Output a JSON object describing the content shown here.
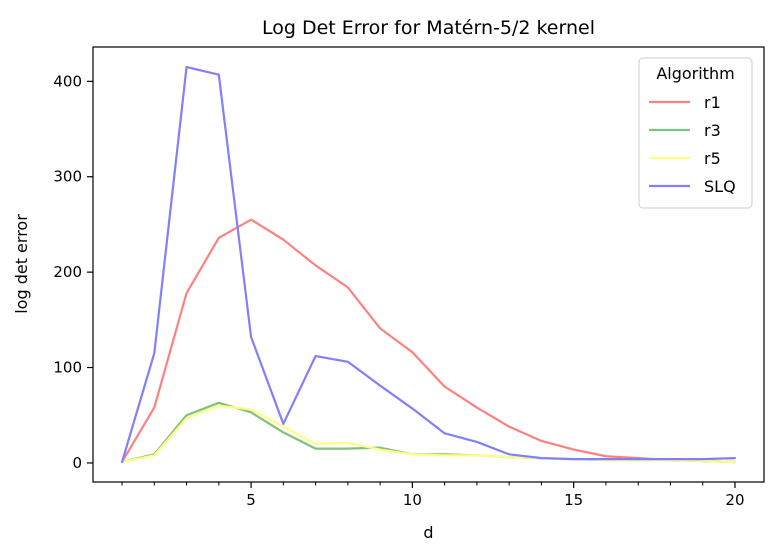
{
  "chart_data": {
    "type": "line",
    "title": "Log Det Error for Matérn-5/2 kernel",
    "xlabel": "d",
    "ylabel": "log det error",
    "x": [
      1,
      2,
      3,
      4,
      5,
      6,
      7,
      8,
      9,
      10,
      11,
      12,
      13,
      14,
      15,
      16,
      17,
      18,
      19,
      20
    ],
    "xlim": [
      0.1,
      20.9
    ],
    "ylim": [
      -20,
      436
    ],
    "xticks_major": [
      5,
      10,
      15,
      20
    ],
    "xticks_minor": [
      1,
      2,
      3,
      4,
      6,
      7,
      8,
      9,
      11,
      12,
      13,
      14,
      16,
      17,
      18,
      19
    ],
    "yticks": [
      0,
      100,
      200,
      300,
      400
    ],
    "grid": false,
    "legend": {
      "title": "Algorithm",
      "placement": "top-right"
    },
    "series": [
      {
        "name": "r1",
        "color": "#ff8080",
        "values": [
          1,
          58,
          178,
          236,
          255,
          234,
          207,
          184,
          141,
          116,
          80,
          58,
          38,
          23,
          14,
          7,
          5,
          3,
          2,
          1
        ]
      },
      {
        "name": "r3",
        "color": "#80c080",
        "values": [
          1,
          9,
          50,
          63,
          53,
          32,
          15,
          15,
          16,
          9,
          9,
          8,
          6,
          5,
          4,
          3,
          3,
          3,
          2,
          1
        ]
      },
      {
        "name": "r5",
        "color": "#ffff80",
        "values": [
          1,
          8,
          47,
          60,
          56,
          38,
          20,
          21,
          14,
          9,
          8,
          8,
          6,
          5,
          4,
          3,
          3,
          3,
          2,
          1
        ]
      },
      {
        "name": "SLQ",
        "color": "#8080ff",
        "values": [
          1,
          115,
          415,
          407,
          132,
          41,
          112,
          106,
          81,
          57,
          31,
          22,
          9,
          5,
          4,
          4,
          4,
          4,
          4,
          5
        ]
      }
    ]
  }
}
